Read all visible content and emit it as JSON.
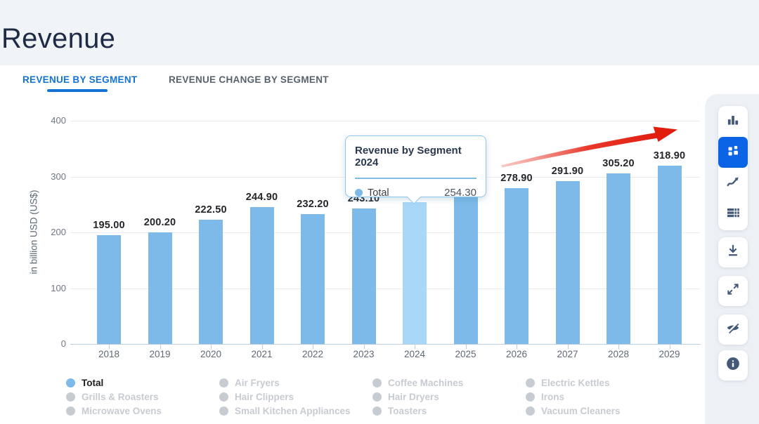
{
  "page": {
    "title": "Revenue"
  },
  "tabs": [
    {
      "label": "REVENUE BY SEGMENT",
      "active": true
    },
    {
      "label": "REVENUE CHANGE BY SEGMENT",
      "active": false
    }
  ],
  "chart_data": {
    "type": "bar",
    "ylabel": "in billion USD (US$)",
    "xlabel": "",
    "ylim": [
      0,
      400
    ],
    "yticks": [
      0,
      100,
      200,
      300,
      400
    ],
    "grid": true,
    "categories": [
      "2018",
      "2019",
      "2020",
      "2021",
      "2022",
      "2023",
      "2024",
      "2025",
      "2026",
      "2027",
      "2028",
      "2029"
    ],
    "series": [
      {
        "name": "Total",
        "values": [
          195.0,
          200.2,
          222.5,
          244.9,
          232.2,
          243.1,
          254.3,
          266.3,
          278.9,
          291.9,
          305.2,
          318.9
        ]
      }
    ],
    "highlighted_category": "2024",
    "value_label_format": "0.00",
    "hidden_value_label_categories": [
      "2024",
      "2025"
    ]
  },
  "tooltip": {
    "title": "Revenue by Segment 2024",
    "series_label": "Total",
    "value": "254.30"
  },
  "legend": {
    "items": [
      {
        "label": "Total",
        "active": true
      },
      {
        "label": "Air Fryers",
        "active": false
      },
      {
        "label": "Coffee Machines",
        "active": false
      },
      {
        "label": "Electric Kettles",
        "active": false
      },
      {
        "label": "Grills & Roasters",
        "active": false
      },
      {
        "label": "Hair Clippers",
        "active": false
      },
      {
        "label": "Hair Dryers",
        "active": false
      },
      {
        "label": "Irons",
        "active": false
      },
      {
        "label": "Microwave Ovens",
        "active": false
      },
      {
        "label": "Small Kitchen Appliances",
        "active": false
      },
      {
        "label": "Toasters",
        "active": false
      },
      {
        "label": "Vacuum Cleaners",
        "active": false
      }
    ]
  },
  "toolbar": {
    "chart_type_buttons": [
      {
        "name": "bar-chart",
        "active": false
      },
      {
        "name": "segmented-bar-chart",
        "active": true
      },
      {
        "name": "line-chart",
        "active": false
      },
      {
        "name": "data-table",
        "active": false
      }
    ],
    "action_buttons": [
      {
        "name": "download",
        "active": false
      },
      {
        "name": "fullscreen",
        "active": false
      },
      {
        "name": "hide-legend",
        "active": false
      },
      {
        "name": "info",
        "active": false
      }
    ]
  },
  "annotation": {
    "shape": "arrow",
    "color": "#e31b12",
    "direction": "up-right"
  },
  "colors": {
    "accent": "#1273d4",
    "bar": "#7db9e9",
    "bar_highlight": "#a9d7f8",
    "toolbar_active_bg": "#0b63e6",
    "icon": "#44597a",
    "inactive_legend": "#c6ccd2",
    "arrow": "#e31b12"
  }
}
